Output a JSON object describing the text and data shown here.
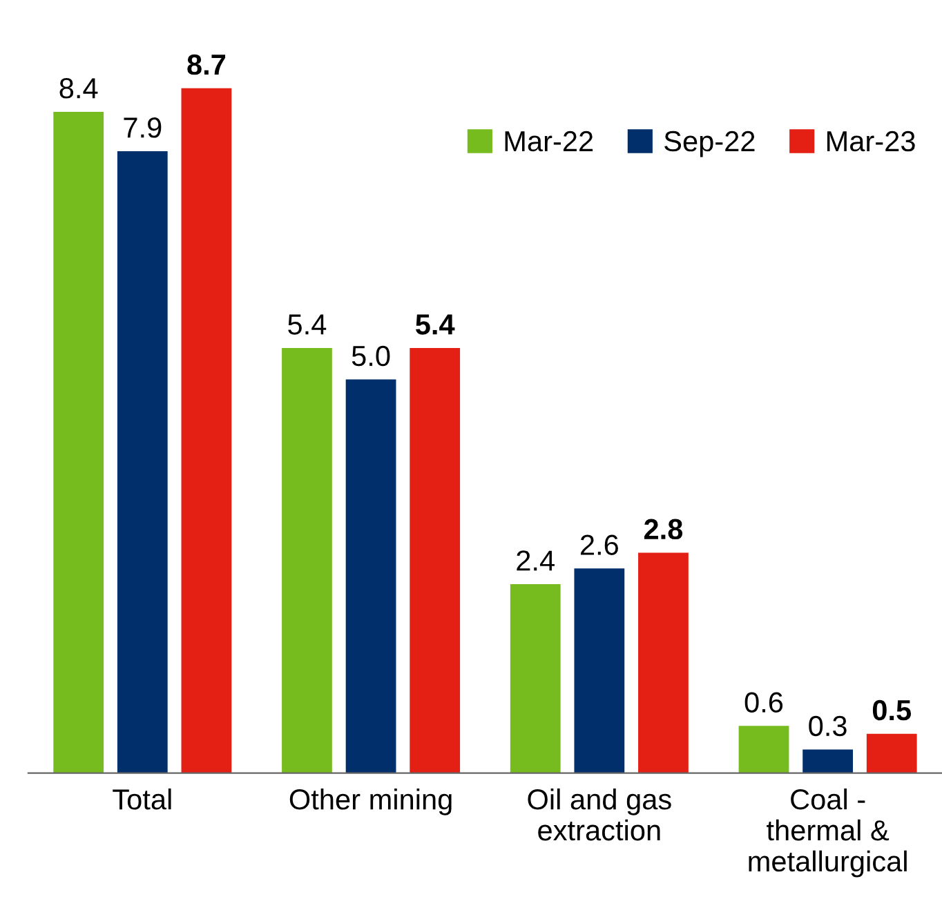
{
  "chart_data": {
    "type": "bar",
    "categories": [
      "Total",
      "Other mining",
      "Oil and gas\nextraction",
      "Coal -\nthermal &\nmetallurgical"
    ],
    "series": [
      {
        "name": "Mar-22",
        "color": "#77bc1f",
        "values": [
          8.4,
          5.4,
          2.4,
          0.6
        ],
        "value_labels": [
          "8.4",
          "5.4",
          "2.4",
          "0.6"
        ]
      },
      {
        "name": "Sep-22",
        "color": "#002f6c",
        "values": [
          7.9,
          5.0,
          2.6,
          0.3
        ],
        "value_labels": [
          "7.9",
          "5.0",
          "2.6",
          "0.3"
        ]
      },
      {
        "name": "Mar-23",
        "color": "#e41f13",
        "values": [
          8.7,
          5.4,
          2.8,
          0.5
        ],
        "value_labels": [
          "8.7",
          "5.4",
          "2.8",
          "0.5"
        ]
      }
    ],
    "legend": "top right",
    "grid": false
  }
}
